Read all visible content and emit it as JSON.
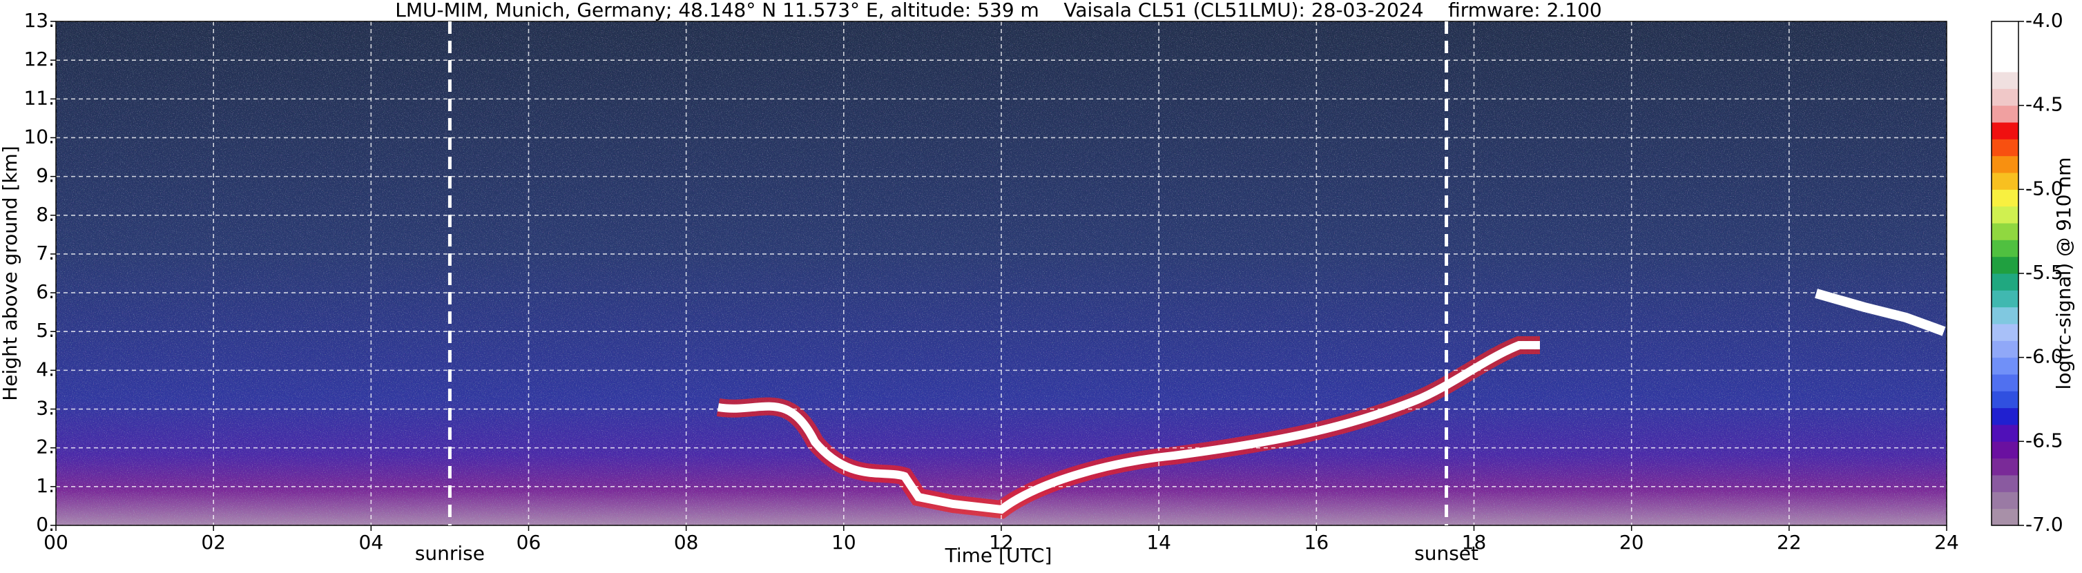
{
  "chart_data": {
    "type": "heatmap",
    "title": "LMU-MIM, Munich, Germany; 48.148° N 11.573° E, altitude: 539 m    Vaisala CL51 (CL51LMU): 28-03-2024    firmware: 2.100",
    "x_label": "Time [UTC]",
    "y_label": "Height above ground [km]",
    "xlim": [
      0,
      24
    ],
    "xticks": [
      {
        "value": 0,
        "label": "00"
      },
      {
        "value": 2,
        "label": "02"
      },
      {
        "value": 4,
        "label": "04"
      },
      {
        "value": 6,
        "label": "06"
      },
      {
        "value": 8,
        "label": "08"
      },
      {
        "value": 10,
        "label": "10"
      },
      {
        "value": 12,
        "label": "12"
      },
      {
        "value": 14,
        "label": "14"
      },
      {
        "value": 16,
        "label": "16"
      },
      {
        "value": 18,
        "label": "18"
      },
      {
        "value": 20,
        "label": "20"
      },
      {
        "value": 22,
        "label": "22"
      },
      {
        "value": 24,
        "label": "24"
      }
    ],
    "ylim": [
      0,
      13
    ],
    "yticks": [
      {
        "value": 0,
        "label": "0."
      },
      {
        "value": 1,
        "label": "1."
      },
      {
        "value": 2,
        "label": "2."
      },
      {
        "value": 3,
        "label": "3."
      },
      {
        "value": 4,
        "label": "4."
      },
      {
        "value": 5,
        "label": "5."
      },
      {
        "value": 6,
        "label": "6."
      },
      {
        "value": 7,
        "label": "7."
      },
      {
        "value": 8,
        "label": "8."
      },
      {
        "value": 9,
        "label": "9."
      },
      {
        "value": 10,
        "label": "10."
      },
      {
        "value": 11,
        "label": "11."
      },
      {
        "value": 12,
        "label": "12."
      },
      {
        "value": 13,
        "label": "13."
      }
    ],
    "grid": true,
    "annotations": [
      {
        "text": "sunrise",
        "x": 5.0
      },
      {
        "text": "sunset",
        "x": 17.65
      }
    ],
    "colorbar": {
      "label": "log(rc-signal) @ 910 nm",
      "lim": [
        -7,
        -4
      ],
      "ticks": [
        {
          "value": -4,
          "label": "-4.0"
        },
        {
          "value": -4.5,
          "label": "-4.5"
        },
        {
          "value": -5,
          "label": "-5.0"
        },
        {
          "value": -5.5,
          "label": "-5.5"
        },
        {
          "value": -6,
          "label": "-6.0"
        },
        {
          "value": -6.5,
          "label": "-6.5"
        },
        {
          "value": -7,
          "label": "-7.0"
        }
      ],
      "colors": [
        "#a890a8",
        "#9a7aa4",
        "#8a5aa0",
        "#7a2a98",
        "#6a10a0",
        "#5010b8",
        "#2020d0",
        "#3050e0",
        "#5070f0",
        "#7090f8",
        "#90a8f8",
        "#a8c0f8",
        "#80c8e0",
        "#40b8b0",
        "#20a880",
        "#20a040",
        "#50c040",
        "#90d840",
        "#d0f050",
        "#f8f040",
        "#f8c020",
        "#f89010",
        "#f85010",
        "#f01010",
        "#f0a0a0",
        "#f0c8c8",
        "#f0e0e0",
        "#ffffff",
        "#ffffff",
        "#ffffff"
      ]
    }
  }
}
